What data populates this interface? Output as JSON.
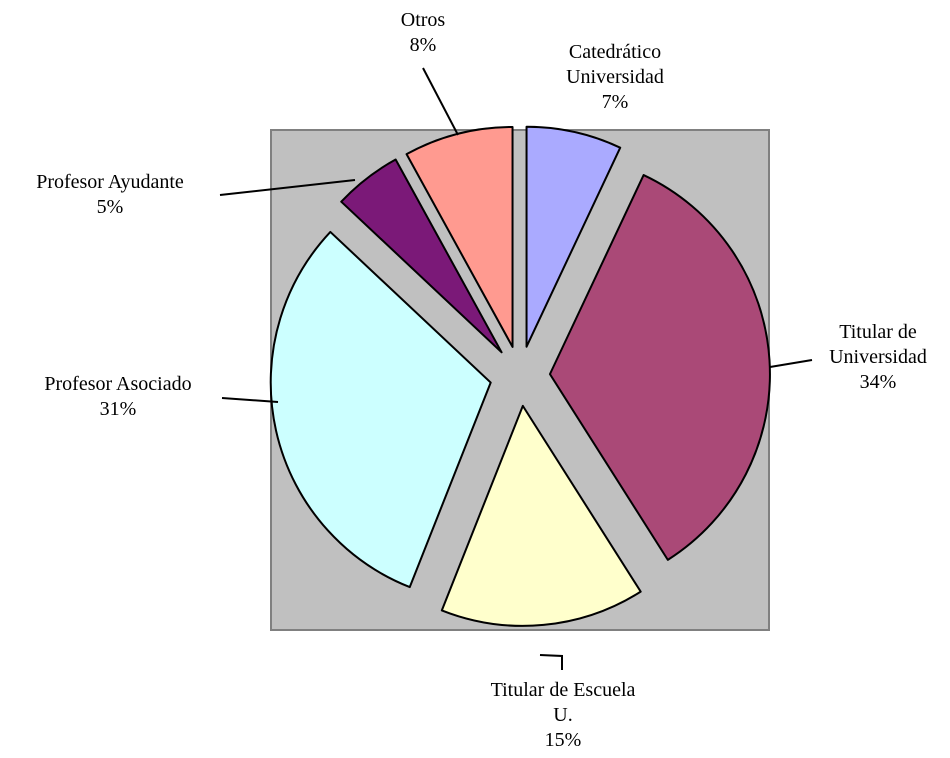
{
  "chart_data": {
    "type": "pie",
    "categories": [
      "Catedrático\nUniversidad",
      "Titular de\nUniversidad",
      "Titular de Escuela\nU.",
      "Profesor Asociado",
      "Profesor Ayudante",
      "Otros"
    ],
    "values": [
      7,
      34,
      15,
      31,
      5,
      8
    ],
    "value_labels": [
      "7%",
      "34%",
      "15%",
      "31%",
      "5%",
      "8%"
    ],
    "colors": [
      "#aaaaff",
      "#aa4977",
      "#ffffcc",
      "#ccffff",
      "#7b1978",
      "#ff9a90"
    ]
  }
}
